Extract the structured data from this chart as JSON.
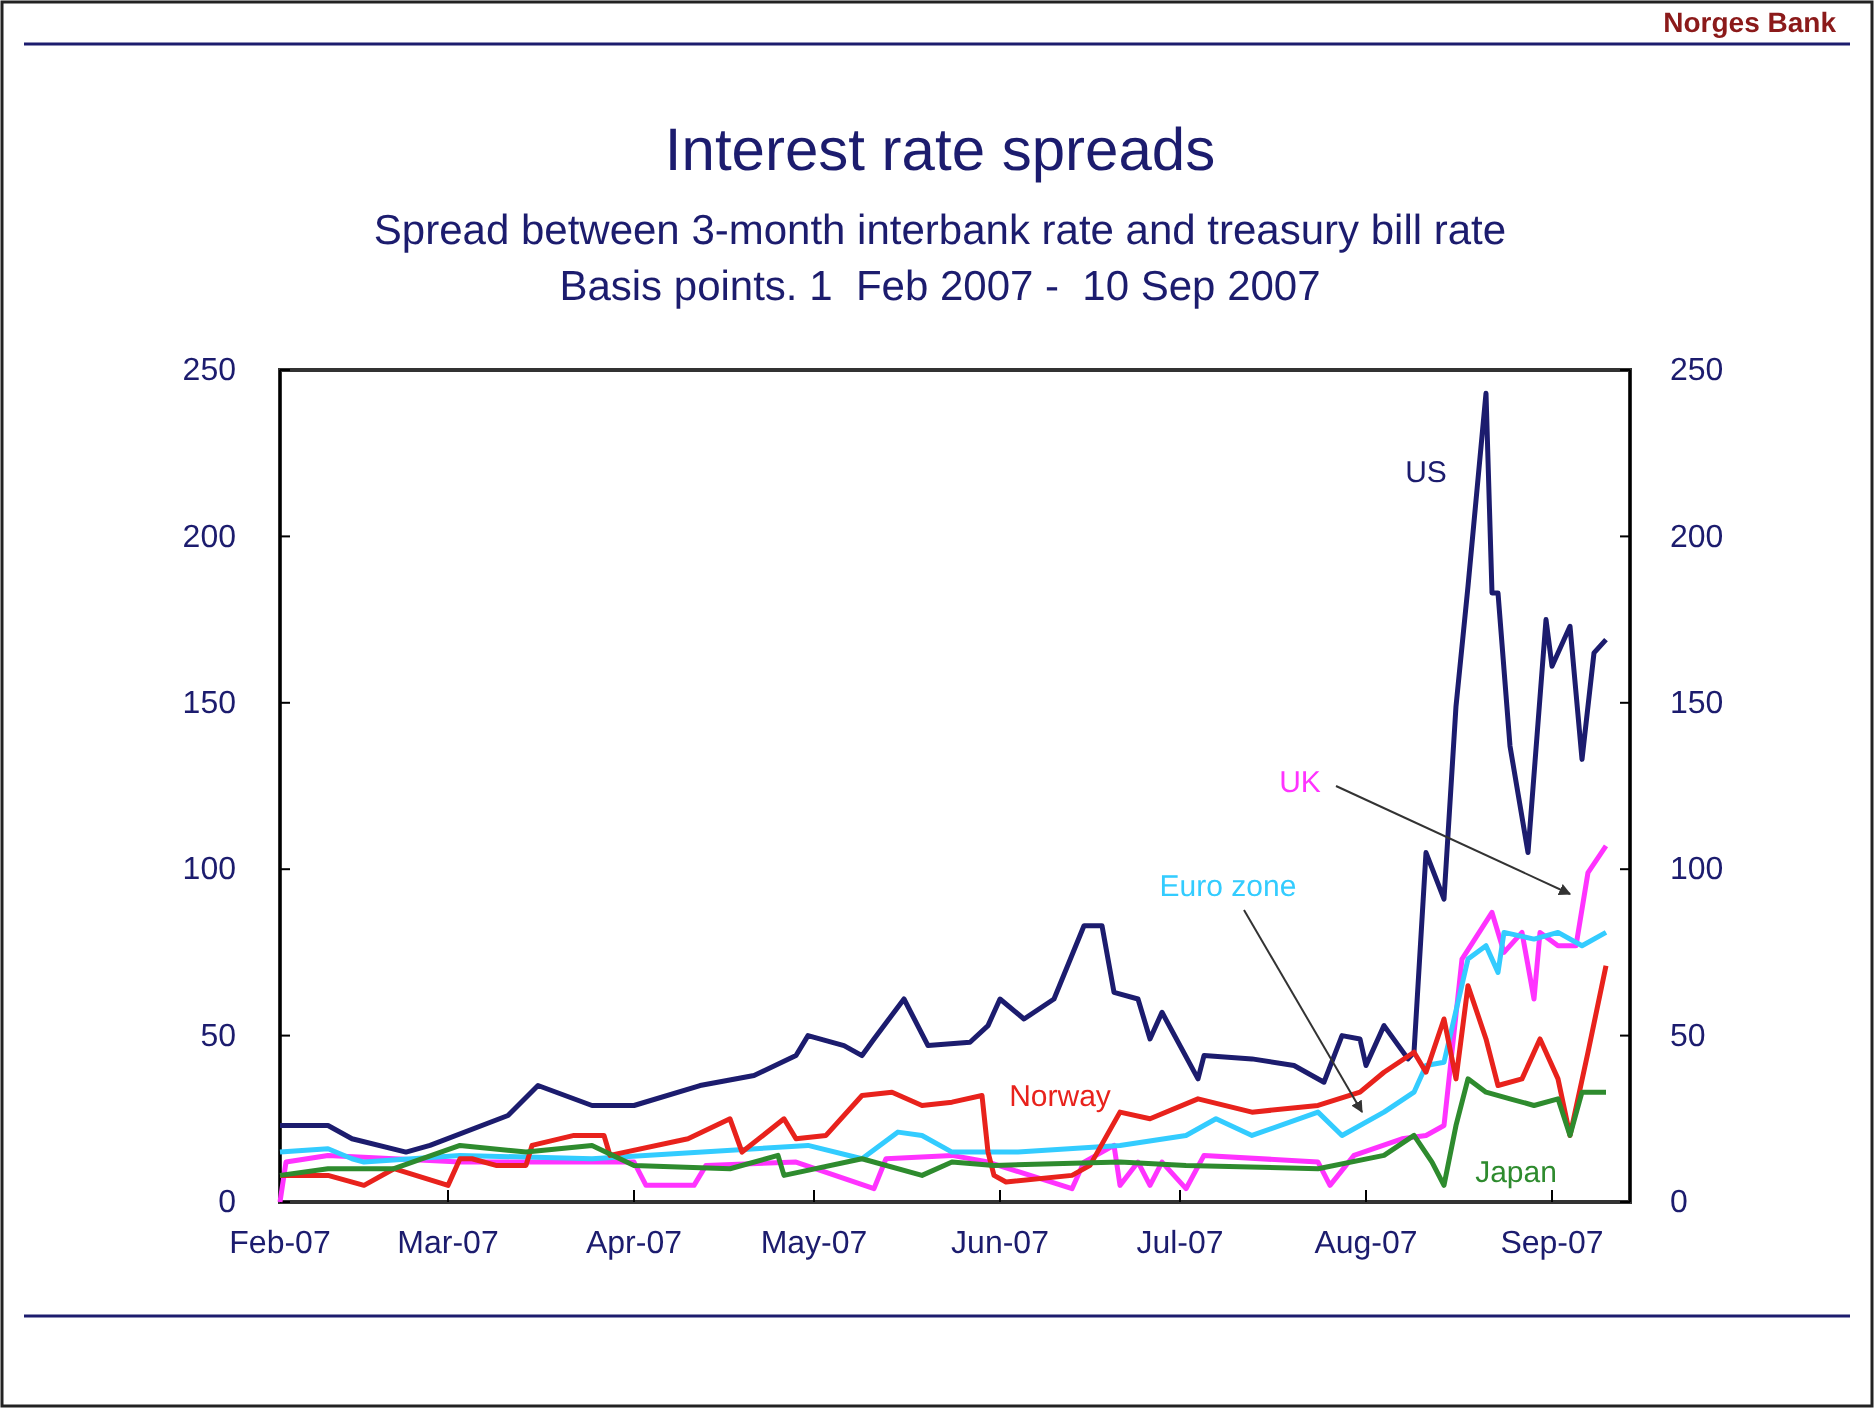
{
  "chart_data": {
    "type": "line",
    "title": "Interest rate spreads",
    "subtitle": "Spread between 3-month interbank rate and treasury bill rate\nBasis points. 1  Feb 2007 -  10 Sep 2007",
    "annotations": [
      "Norges Bank"
    ],
    "xlim": [
      "2007-02-01",
      "2007-09-14"
    ],
    "xticks": [
      {
        "value": "2007-02-01",
        "label": "Feb-07"
      },
      {
        "value": "2007-03-01",
        "label": "Mar-07"
      },
      {
        "value": "2007-04-01",
        "label": "Apr-07"
      },
      {
        "value": "2007-05-01",
        "label": "May-07"
      },
      {
        "value": "2007-06-01",
        "label": "Jun-07"
      },
      {
        "value": "2007-07-01",
        "label": "Jul-07"
      },
      {
        "value": "2007-08-01",
        "label": "Aug-07"
      },
      {
        "value": "2007-09-01",
        "label": "Sep-07"
      }
    ],
    "ylim": [
      0,
      250
    ],
    "yticks": [
      0,
      50,
      100,
      150,
      200,
      250
    ],
    "y2lim": [
      0,
      250
    ],
    "y2ticks": [
      0,
      50,
      100,
      150,
      200,
      250
    ],
    "grid": false,
    "legend": false,
    "line_style": "solid",
    "marker": "none",
    "series": [
      {
        "name": "US",
        "color": "#1c1c6e",
        "x": [
          "2007-02-01",
          "2007-02-09",
          "2007-02-13",
          "2007-02-22",
          "2007-02-26",
          "2007-03-11",
          "2007-03-16",
          "2007-03-25",
          "2007-04-01",
          "2007-04-12",
          "2007-04-21",
          "2007-04-28",
          "2007-04-30",
          "2007-05-06",
          "2007-05-09",
          "2007-05-11",
          "2007-05-16",
          "2007-05-20",
          "2007-05-27",
          "2007-05-30",
          "2007-06-01",
          "2007-06-05",
          "2007-06-10",
          "2007-06-15",
          "2007-06-18",
          "2007-06-20",
          "2007-06-24",
          "2007-06-26",
          "2007-06-28",
          "2007-07-04",
          "2007-07-05",
          "2007-07-13",
          "2007-07-20",
          "2007-07-25",
          "2007-07-28",
          "2007-07-31",
          "2007-08-01",
          "2007-08-04",
          "2007-08-08",
          "2007-08-09",
          "2007-08-11",
          "2007-08-14",
          "2007-08-16",
          "2007-08-18",
          "2007-08-21",
          "2007-08-22",
          "2007-08-23",
          "2007-08-25",
          "2007-08-28",
          "2007-08-31",
          "2007-09-01",
          "2007-09-04",
          "2007-09-06",
          "2007-09-08",
          "2007-09-10"
        ],
        "values": [
          23,
          23,
          19,
          15,
          17,
          26,
          35,
          29,
          29,
          35,
          38,
          44,
          50,
          47,
          44,
          49,
          61,
          47,
          48,
          53,
          61,
          55,
          61,
          83,
          83,
          63,
          61,
          49,
          57,
          37,
          44,
          43,
          41,
          36,
          50,
          49,
          41,
          53,
          43,
          45,
          105,
          91,
          149,
          185,
          243,
          183,
          183,
          137,
          105,
          175,
          161,
          173,
          133,
          165,
          169
        ]
      },
      {
        "name": "UK",
        "color": "#ff33ff",
        "x": [
          "2007-02-01",
          "2007-02-02",
          "2007-02-09",
          "2007-03-03",
          "2007-04-01",
          "2007-04-03",
          "2007-04-11",
          "2007-04-13",
          "2007-04-28",
          "2007-05-11",
          "2007-05-13",
          "2007-05-24",
          "2007-05-30",
          "2007-06-13",
          "2007-06-15",
          "2007-06-20",
          "2007-06-21",
          "2007-06-24",
          "2007-06-26",
          "2007-06-28",
          "2007-07-02",
          "2007-07-05",
          "2007-07-24",
          "2007-07-26",
          "2007-07-30",
          "2007-08-07",
          "2007-08-11",
          "2007-08-14",
          "2007-08-17",
          "2007-08-22",
          "2007-08-24",
          "2007-08-27",
          "2007-08-29",
          "2007-08-30",
          "2007-09-02",
          "2007-09-05",
          "2007-09-07",
          "2007-09-10"
        ],
        "values": [
          0,
          12,
          14,
          12,
          12,
          5,
          5,
          11,
          12,
          4,
          13,
          14,
          12,
          4,
          12,
          17,
          5,
          12,
          5,
          12,
          4,
          14,
          12,
          5,
          14,
          19,
          20,
          23,
          73,
          87,
          75,
          81,
          61,
          81,
          77,
          77,
          99,
          107
        ]
      },
      {
        "name": "Euro zone",
        "color": "#33ccff",
        "x": [
          "2007-02-01",
          "2007-02-09",
          "2007-02-13",
          "2007-02-15",
          "2007-03-03",
          "2007-03-25",
          "2007-04-30",
          "2007-05-09",
          "2007-05-15",
          "2007-05-19",
          "2007-05-24",
          "2007-06-04",
          "2007-06-21",
          "2007-07-02",
          "2007-07-07",
          "2007-07-13",
          "2007-07-24",
          "2007-07-28",
          "2007-08-04",
          "2007-08-09",
          "2007-08-11",
          "2007-08-14",
          "2007-08-18",
          "2007-08-21",
          "2007-08-23",
          "2007-08-24",
          "2007-08-29",
          "2007-09-02",
          "2007-09-06",
          "2007-09-10"
        ],
        "values": [
          15,
          16,
          13,
          12,
          14,
          13,
          17,
          13,
          21,
          20,
          15,
          15,
          17,
          20,
          25,
          20,
          27,
          20,
          27,
          33,
          41,
          42,
          73,
          77,
          69,
          81,
          79,
          81,
          77,
          81
        ]
      },
      {
        "name": "Norway",
        "color": "#e8221c",
        "x": [
          "2007-02-01",
          "2007-02-09",
          "2007-02-15",
          "2007-02-20",
          "2007-03-01",
          "2007-03-03",
          "2007-03-05",
          "2007-03-09",
          "2007-03-14",
          "2007-03-15",
          "2007-03-22",
          "2007-03-27",
          "2007-03-28",
          "2007-04-10",
          "2007-04-17",
          "2007-04-19",
          "2007-04-26",
          "2007-04-28",
          "2007-05-03",
          "2007-05-09",
          "2007-05-14",
          "2007-05-19",
          "2007-05-24",
          "2007-05-29",
          "2007-05-30",
          "2007-05-31",
          "2007-06-02",
          "2007-06-13",
          "2007-06-16",
          "2007-06-21",
          "2007-06-26",
          "2007-07-04",
          "2007-07-13",
          "2007-07-24",
          "2007-07-31",
          "2007-08-04",
          "2007-08-09",
          "2007-08-11",
          "2007-08-14",
          "2007-08-16",
          "2007-08-18",
          "2007-08-21",
          "2007-08-23",
          "2007-08-27",
          "2007-08-30",
          "2007-09-02",
          "2007-09-04",
          "2007-09-07",
          "2007-09-10"
        ],
        "values": [
          8,
          8,
          5,
          10,
          5,
          13,
          13,
          11,
          11,
          17,
          20,
          20,
          14,
          19,
          25,
          15,
          25,
          19,
          20,
          32,
          33,
          29,
          30,
          32,
          15,
          8,
          6,
          8,
          11,
          27,
          25,
          31,
          27,
          29,
          33,
          39,
          45,
          39,
          55,
          37,
          65,
          49,
          35,
          37,
          49,
          37,
          20,
          45,
          71
        ]
      },
      {
        "name": "Japan",
        "color": "#2e8b2e",
        "x": [
          "2007-02-01",
          "2007-02-09",
          "2007-02-20",
          "2007-03-03",
          "2007-03-14",
          "2007-03-25",
          "2007-04-01",
          "2007-04-17",
          "2007-04-25",
          "2007-04-26",
          "2007-05-09",
          "2007-05-19",
          "2007-05-24",
          "2007-05-31",
          "2007-06-21",
          "2007-07-02",
          "2007-07-24",
          "2007-08-04",
          "2007-08-09",
          "2007-08-12",
          "2007-08-14",
          "2007-08-16",
          "2007-08-18",
          "2007-08-21",
          "2007-08-25",
          "2007-08-29",
          "2007-09-02",
          "2007-09-04",
          "2007-09-06",
          "2007-09-10"
        ],
        "values": [
          8,
          10,
          10,
          17,
          15,
          17,
          11,
          10,
          14,
          8,
          13,
          8,
          12,
          11,
          12,
          11,
          10,
          14,
          20,
          12,
          5,
          23,
          37,
          33,
          31,
          29,
          31,
          20,
          33,
          33
        ]
      }
    ]
  }
}
